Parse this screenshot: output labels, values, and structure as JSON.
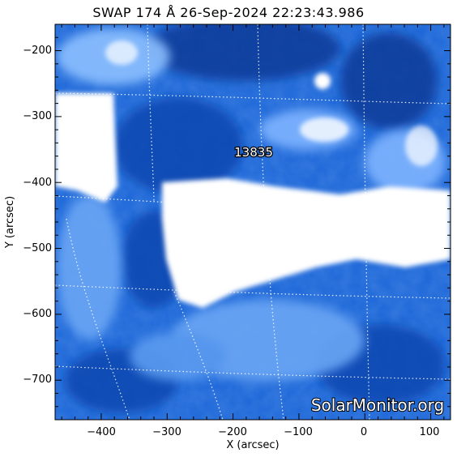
{
  "title": "SWAP 174 Å 26-Sep-2024 22:23:43.986",
  "x_axis": {
    "label": "X (arcsec)",
    "range": [
      -470,
      130
    ],
    "ticks": [
      -400,
      -300,
      -200,
      -100,
      0,
      100
    ],
    "tick_labels": [
      "−400",
      "−300",
      "−200",
      "−100",
      "0",
      "100"
    ]
  },
  "y_axis": {
    "label": "Y (arcsec)",
    "range": [
      -760,
      -160
    ],
    "ticks": [
      -200,
      -300,
      -400,
      -500,
      -600,
      -700
    ],
    "tick_labels": [
      "−200",
      "−300",
      "−400",
      "−500",
      "−600",
      "−700"
    ]
  },
  "region_label": "13835",
  "watermark": "SolarMonitor.org",
  "colors": {
    "dark": "#0a3ea0",
    "mid": "#1e6fe0",
    "light": "#7fb4ff",
    "bright": "#ffffff",
    "grid": "#ffffff"
  }
}
